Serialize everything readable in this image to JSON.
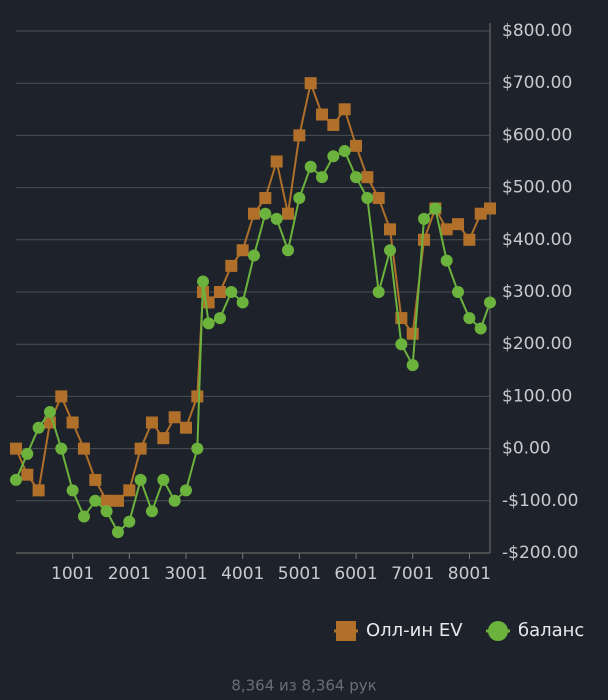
{
  "chart_data": {
    "type": "line",
    "x": [
      1,
      200,
      400,
      600,
      800,
      1000,
      1200,
      1400,
      1600,
      1800,
      2000,
      2200,
      2400,
      2600,
      2800,
      3000,
      3200,
      3300,
      3400,
      3600,
      3800,
      4000,
      4200,
      4400,
      4600,
      4800,
      5000,
      5200,
      5400,
      5600,
      5800,
      6000,
      6200,
      6400,
      6600,
      6800,
      7000,
      7200,
      7400,
      7600,
      7800,
      8000,
      8200,
      8364
    ],
    "series": [
      {
        "name": "Олл-ин EV",
        "color": "#b0702a",
        "marker": "square",
        "values": [
          0,
          -50,
          -80,
          50,
          100,
          50,
          0,
          -60,
          -100,
          -100,
          -80,
          0,
          50,
          20,
          60,
          40,
          100,
          300,
          280,
          300,
          350,
          380,
          450,
          480,
          550,
          450,
          600,
          700,
          640,
          620,
          650,
          580,
          520,
          480,
          420,
          250,
          220,
          400,
          460,
          420,
          430,
          400,
          450,
          460
        ]
      },
      {
        "name": "баланс",
        "color": "#6cb33e",
        "marker": "circle",
        "values": [
          -60,
          -10,
          40,
          70,
          0,
          -80,
          -130,
          -100,
          -120,
          -160,
          -140,
          -60,
          -120,
          -60,
          -100,
          -80,
          0,
          320,
          240,
          250,
          300,
          280,
          370,
          450,
          440,
          380,
          480,
          540,
          520,
          560,
          570,
          520,
          480,
          300,
          380,
          200,
          160,
          440,
          460,
          360,
          300,
          250,
          230,
          280
        ]
      }
    ],
    "xlim": [
      1,
      8364
    ],
    "xticks": [
      1001,
      2001,
      3001,
      4001,
      5001,
      6001,
      7001,
      8001
    ],
    "ylim": [
      -200,
      800
    ],
    "yticks": [
      {
        "value": -200,
        "label": "-$200.00"
      },
      {
        "value": -100,
        "label": "-$100.00"
      },
      {
        "value": 0,
        "label": "$0.00"
      },
      {
        "value": 100,
        "label": "$100.00"
      },
      {
        "value": 200,
        "label": "$200.00"
      },
      {
        "value": 300,
        "label": "$300.00"
      },
      {
        "value": 400,
        "label": "$400.00"
      },
      {
        "value": 500,
        "label": "$500.00"
      },
      {
        "value": 600,
        "label": "$600.00"
      },
      {
        "value": 700,
        "label": "$700.00"
      },
      {
        "value": 800,
        "label": "$800.00"
      }
    ],
    "grid": true,
    "legend": "bottom-right"
  },
  "footer": "8,364 из 8,364 рук"
}
